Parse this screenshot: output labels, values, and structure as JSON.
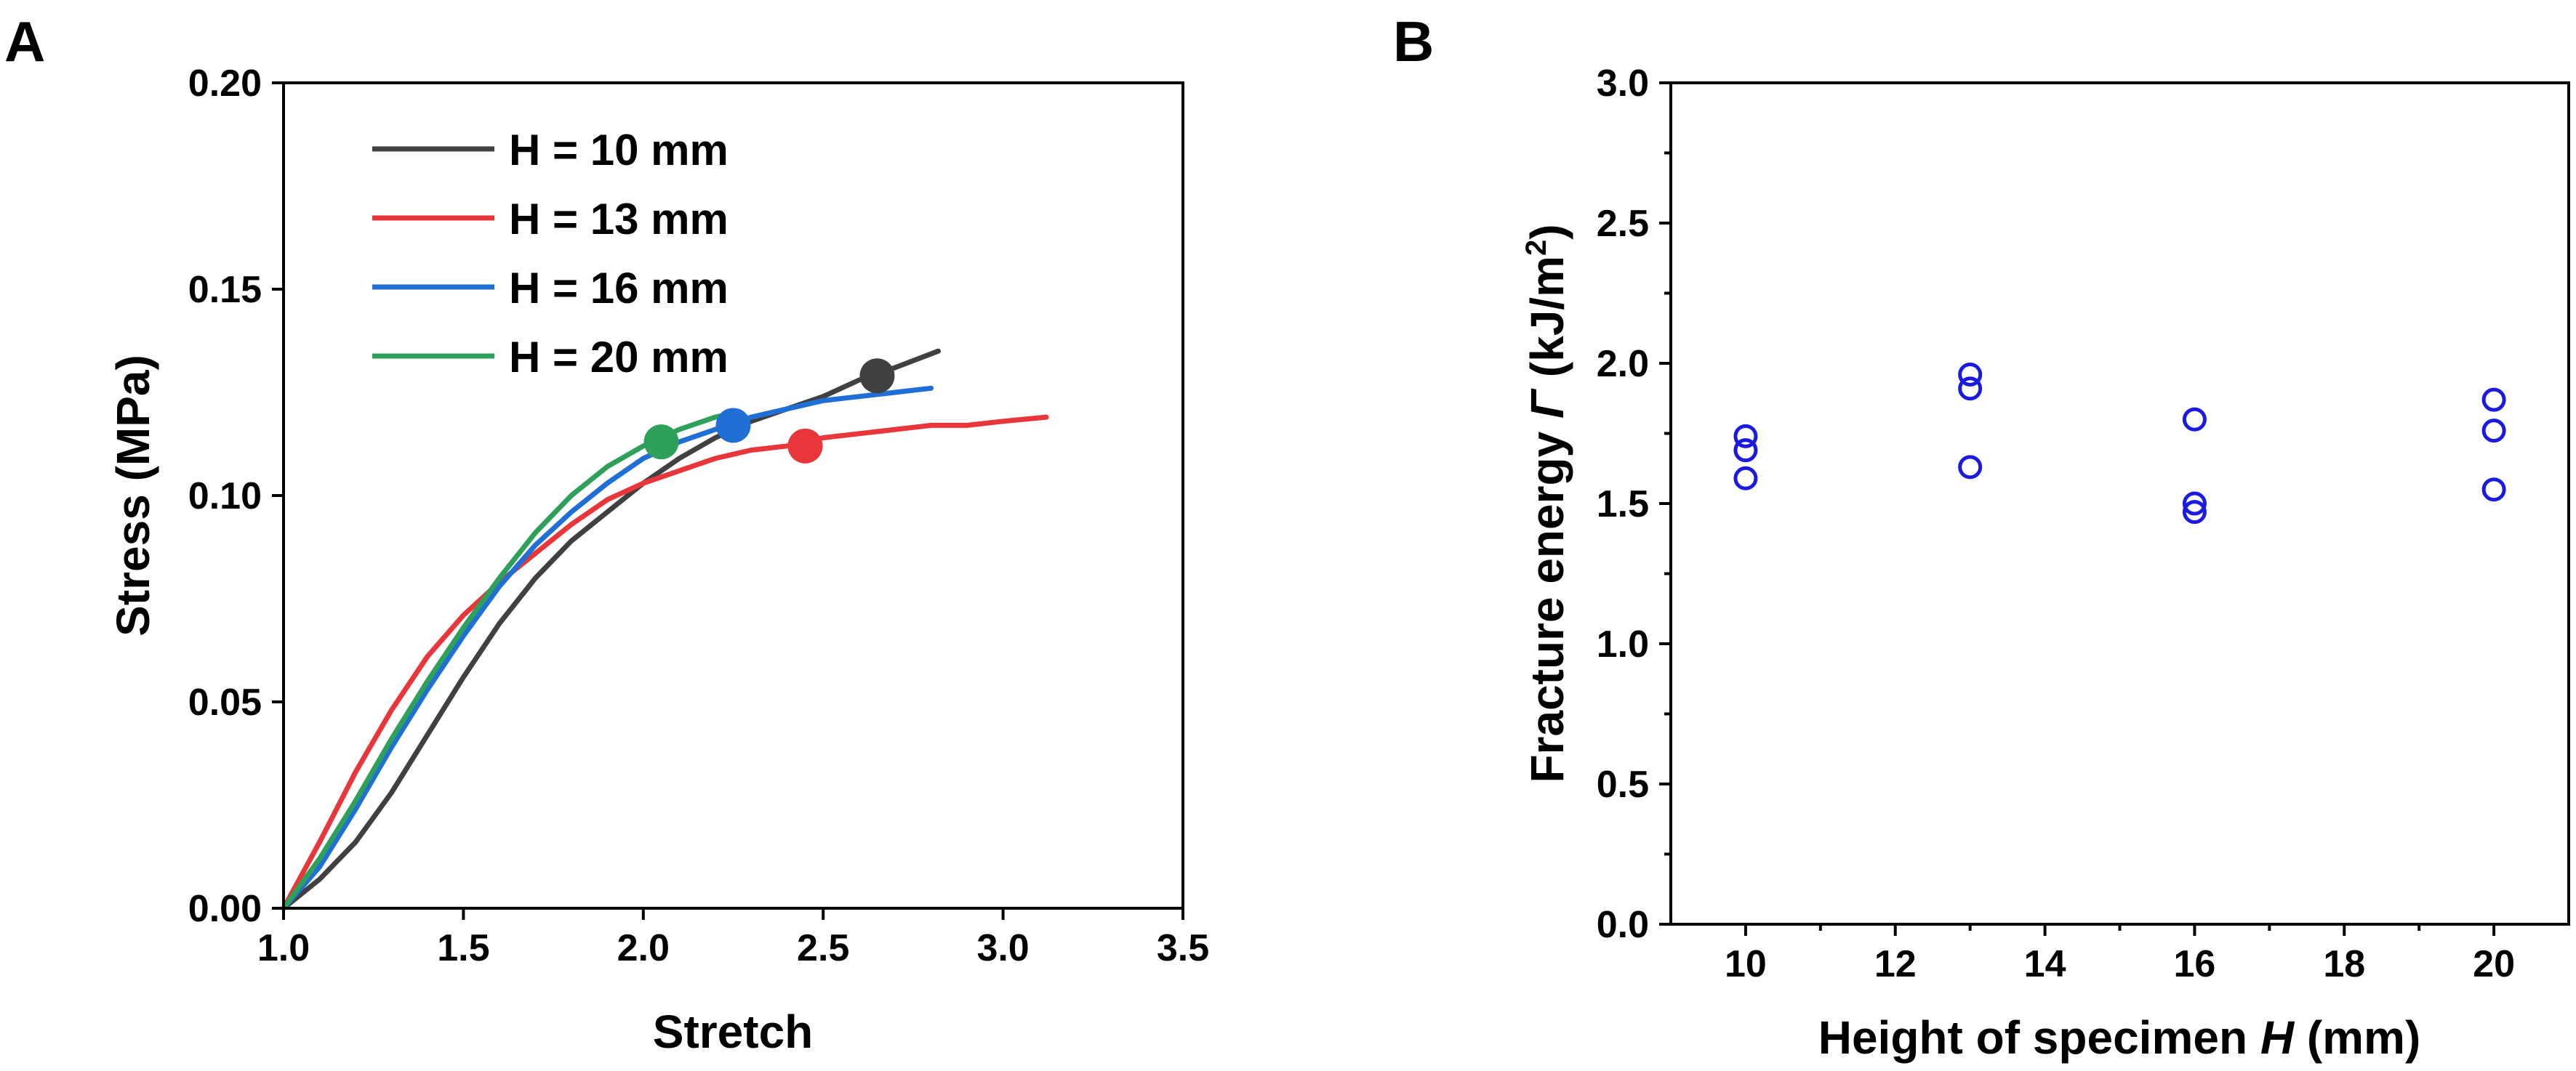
{
  "chart_data": [
    {
      "panel_label": "A",
      "type": "line",
      "xlabel": "Stretch",
      "ylabel": "Stress (MPa)",
      "xlim": [
        1.0,
        3.5
      ],
      "ylim": [
        0.0,
        0.2
      ],
      "xticks": [
        "1.0",
        "1.5",
        "2.0",
        "2.5",
        "3.0",
        "3.5"
      ],
      "yticks": [
        "0.00",
        "0.05",
        "0.10",
        "0.15",
        "0.20"
      ],
      "grid": false,
      "legend_position": "top-left",
      "series": [
        {
          "name": "H = 10 mm",
          "color": "#404040",
          "x": [
            1.0,
            1.1,
            1.2,
            1.3,
            1.4,
            1.5,
            1.6,
            1.7,
            1.8,
            1.9,
            2.0,
            2.1,
            2.2,
            2.3,
            2.4,
            2.5,
            2.6,
            2.7,
            2.82
          ],
          "y": [
            0.0,
            0.007,
            0.016,
            0.028,
            0.042,
            0.056,
            0.069,
            0.08,
            0.089,
            0.096,
            0.103,
            0.109,
            0.114,
            0.118,
            0.121,
            0.124,
            0.128,
            0.131,
            0.135
          ],
          "failure_point": [
            2.65,
            0.129
          ]
        },
        {
          "name": "H = 13 mm",
          "color": "#e8363b",
          "x": [
            1.0,
            1.1,
            1.2,
            1.3,
            1.4,
            1.5,
            1.6,
            1.7,
            1.8,
            1.9,
            2.0,
            2.1,
            2.2,
            2.3,
            2.4,
            2.5,
            2.6,
            2.7,
            2.8,
            2.9,
            3.0,
            3.12
          ],
          "y": [
            0.0,
            0.016,
            0.033,
            0.048,
            0.061,
            0.071,
            0.079,
            0.086,
            0.093,
            0.099,
            0.103,
            0.106,
            0.109,
            0.111,
            0.112,
            0.114,
            0.115,
            0.116,
            0.117,
            0.117,
            0.118,
            0.119
          ],
          "failure_point": [
            2.45,
            0.112
          ]
        },
        {
          "name": "H = 16 mm",
          "color": "#1f6fd6",
          "x": [
            1.0,
            1.1,
            1.2,
            1.3,
            1.4,
            1.5,
            1.6,
            1.7,
            1.8,
            1.9,
            2.0,
            2.1,
            2.2,
            2.3,
            2.4,
            2.5,
            2.6,
            2.7,
            2.8
          ],
          "y": [
            0.0,
            0.01,
            0.024,
            0.039,
            0.053,
            0.066,
            0.078,
            0.088,
            0.096,
            0.103,
            0.109,
            0.113,
            0.116,
            0.119,
            0.121,
            0.123,
            0.124,
            0.125,
            0.126
          ],
          "failure_point": [
            2.25,
            0.117
          ]
        },
        {
          "name": "H = 20 mm",
          "color": "#2ea05a",
          "x": [
            1.0,
            1.1,
            1.2,
            1.3,
            1.4,
            1.5,
            1.6,
            1.7,
            1.8,
            1.9,
            2.0,
            2.1,
            2.2,
            2.25
          ],
          "y": [
            0.0,
            0.012,
            0.026,
            0.041,
            0.055,
            0.068,
            0.08,
            0.091,
            0.1,
            0.107,
            0.112,
            0.116,
            0.119,
            0.12
          ],
          "failure_point": [
            2.05,
            0.113
          ]
        }
      ]
    },
    {
      "panel_label": "B",
      "type": "scatter",
      "xlabel_prefix": "Height of specimen ",
      "xlabel_var": "H",
      "xlabel_suffix": " (mm)",
      "ylabel_prefix": "Fracture energy ",
      "ylabel_var": "Γ",
      "ylabel_unit": " (kJ/m",
      "ylabel_sup": "2",
      "ylabel_close": ")",
      "xlim": [
        9,
        21
      ],
      "ylim": [
        0.0,
        3.0
      ],
      "xticks": [
        "10",
        "12",
        "14",
        "16",
        "18",
        "20"
      ],
      "yticks": [
        "0.0",
        "0.5",
        "1.0",
        "1.5",
        "2.0",
        "2.5",
        "3.0"
      ],
      "grid": false,
      "marker": "open-circle",
      "color": "#1a1ae0",
      "points": [
        {
          "x": 10,
          "y": 1.74
        },
        {
          "x": 10,
          "y": 1.69
        },
        {
          "x": 10,
          "y": 1.59
        },
        {
          "x": 13,
          "y": 1.96
        },
        {
          "x": 13,
          "y": 1.91
        },
        {
          "x": 13,
          "y": 1.63
        },
        {
          "x": 16,
          "y": 1.8
        },
        {
          "x": 16,
          "y": 1.5
        },
        {
          "x": 16,
          "y": 1.47
        },
        {
          "x": 20,
          "y": 1.87
        },
        {
          "x": 20,
          "y": 1.76
        },
        {
          "x": 20,
          "y": 1.55
        }
      ]
    }
  ]
}
